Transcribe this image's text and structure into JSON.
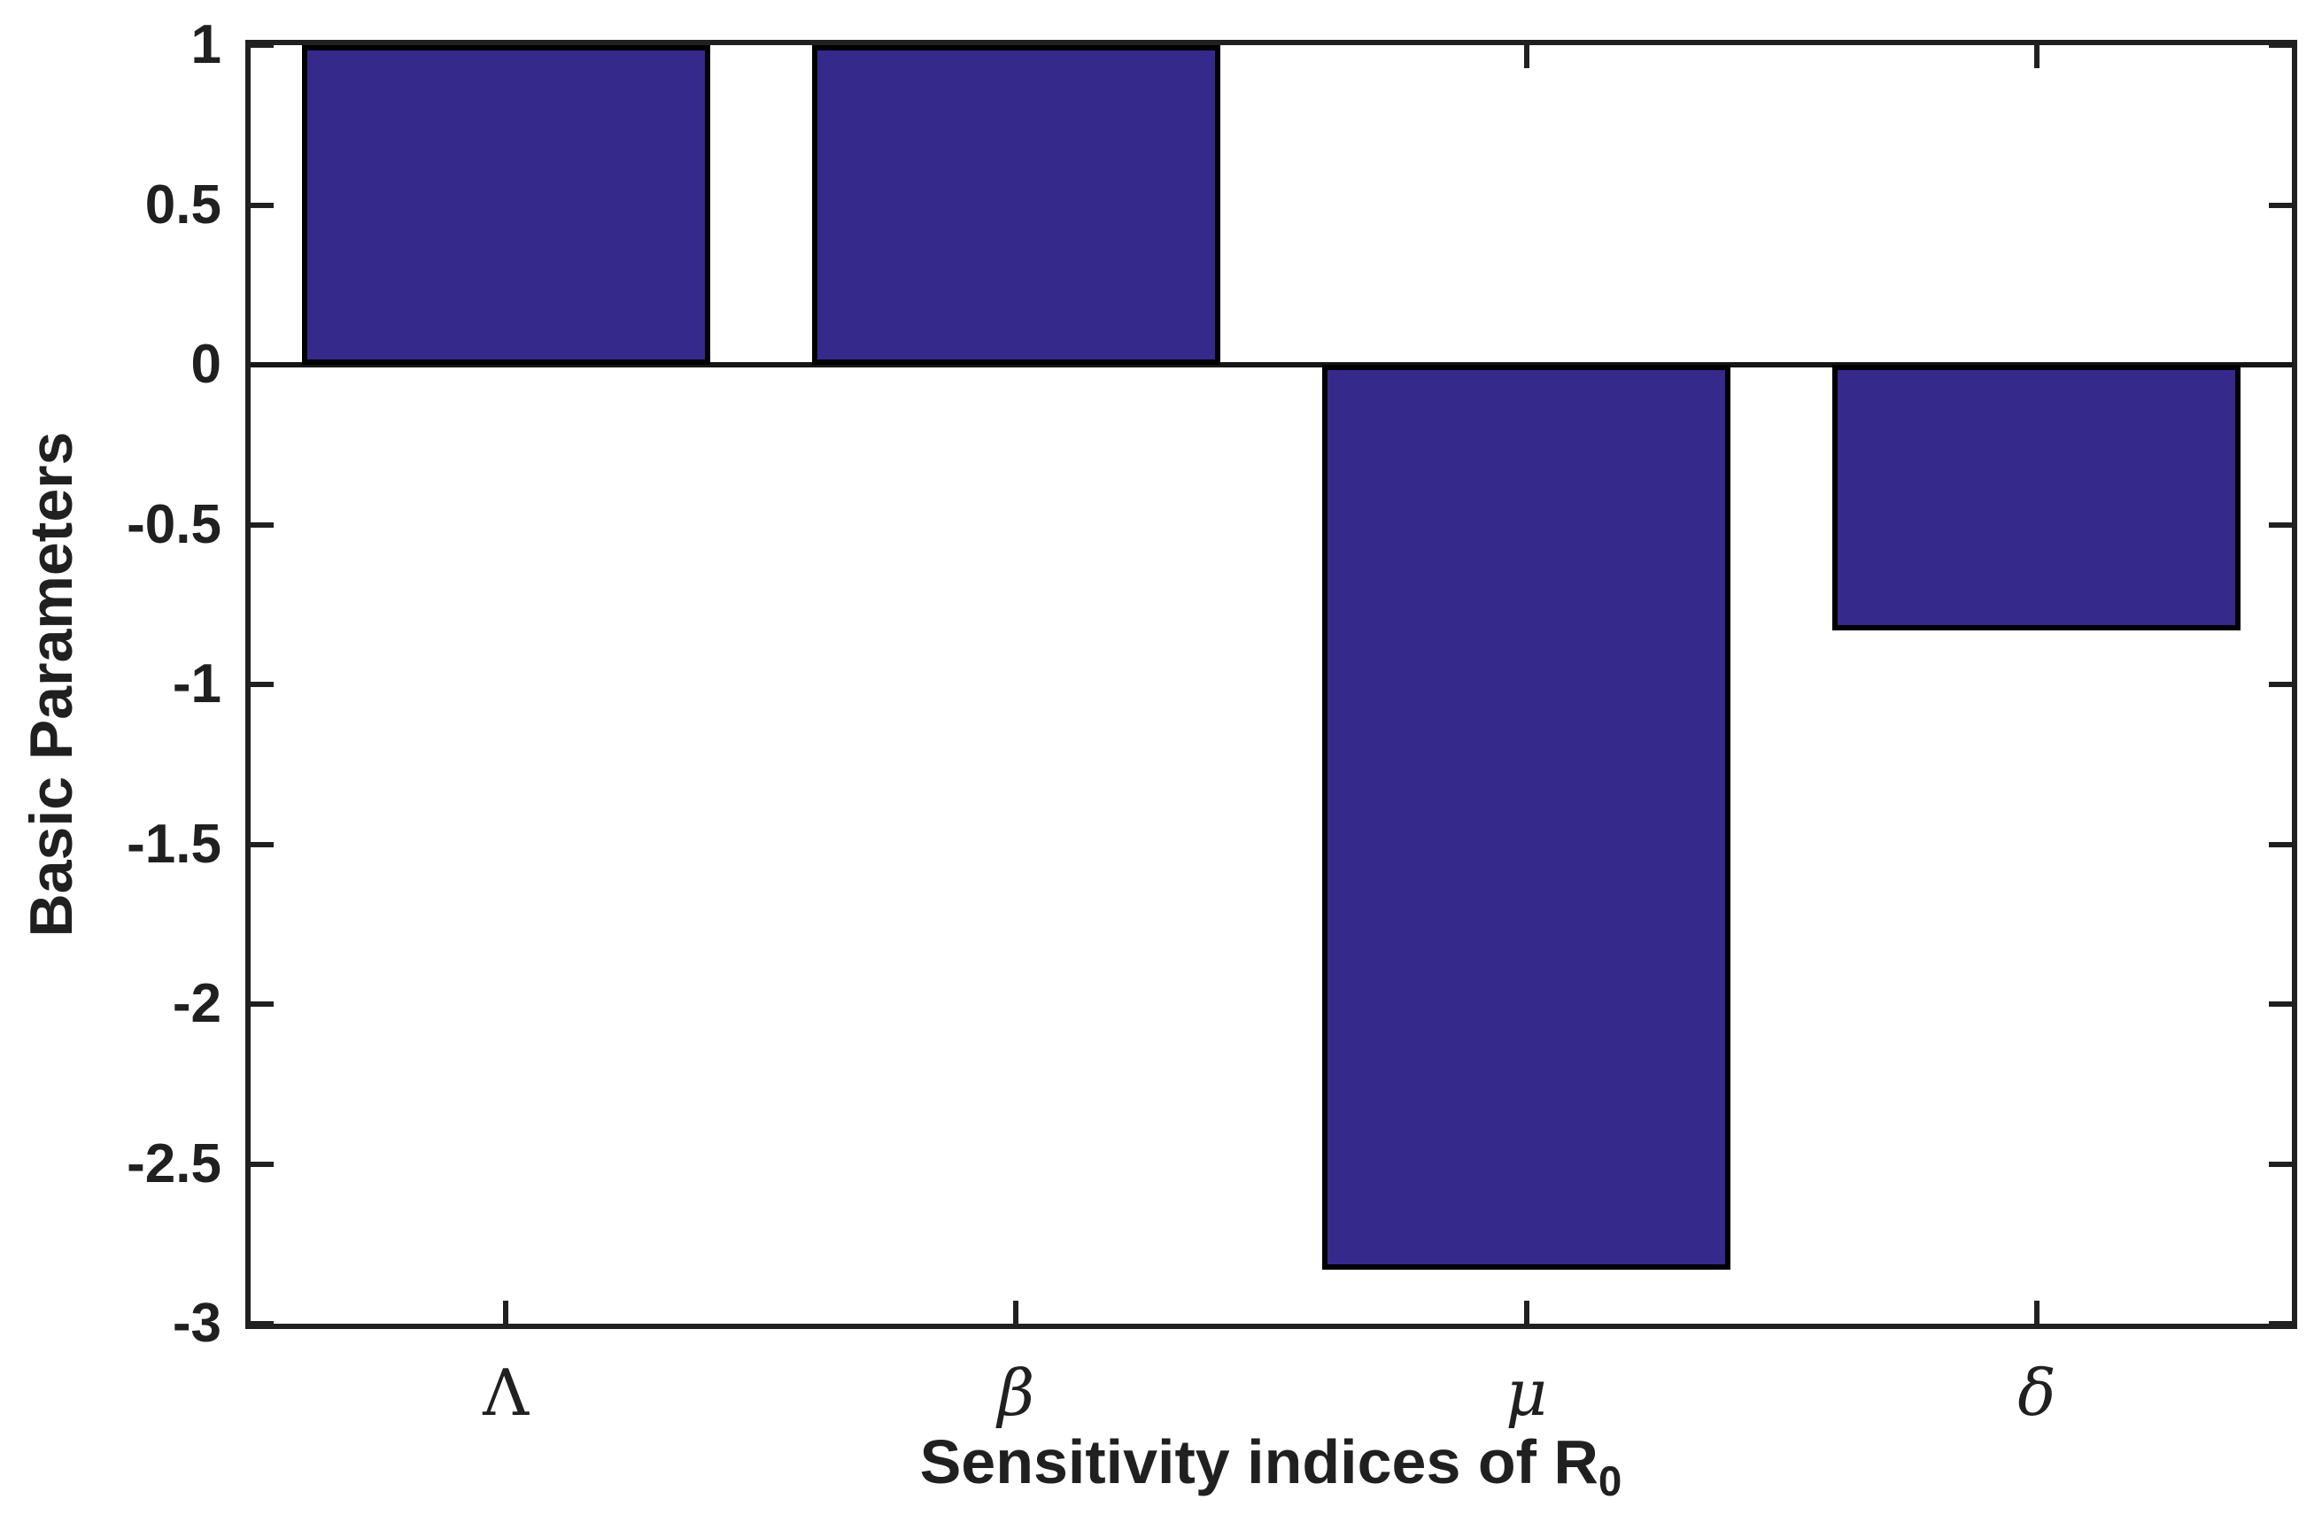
{
  "figure": {
    "background_color": "#ffffff",
    "bar_fill_color": "#36298c",
    "bar_edge_color": "#000000",
    "axis_color": "#202020",
    "text_color": "#202020"
  },
  "chart_data": {
    "type": "bar",
    "categories": [
      "Λ",
      "β",
      "μ",
      "δ"
    ],
    "category_styles": [
      "upright",
      "italic",
      "italic",
      "italic"
    ],
    "values": [
      1,
      1,
      -2.83,
      -0.83
    ],
    "title": "",
    "xlabel": "Sensitivity indices of R",
    "xlabel_subscript": "0",
    "ylabel": "Basic Parameters",
    "ylim": [
      -3,
      1
    ],
    "y_ticks": [
      1,
      0.5,
      0,
      -0.5,
      -1,
      -1.5,
      -2,
      -2.5,
      -3
    ],
    "y_tick_labels": [
      "1",
      "0.5",
      "0",
      "-0.5",
      "-1",
      "-1.5",
      "-2",
      "-2.5",
      "-3"
    ],
    "bar_width_ratio": 0.8,
    "baseline_value": 0,
    "grid": false,
    "legend_position": "none",
    "box": true,
    "tick_direction": "in"
  }
}
